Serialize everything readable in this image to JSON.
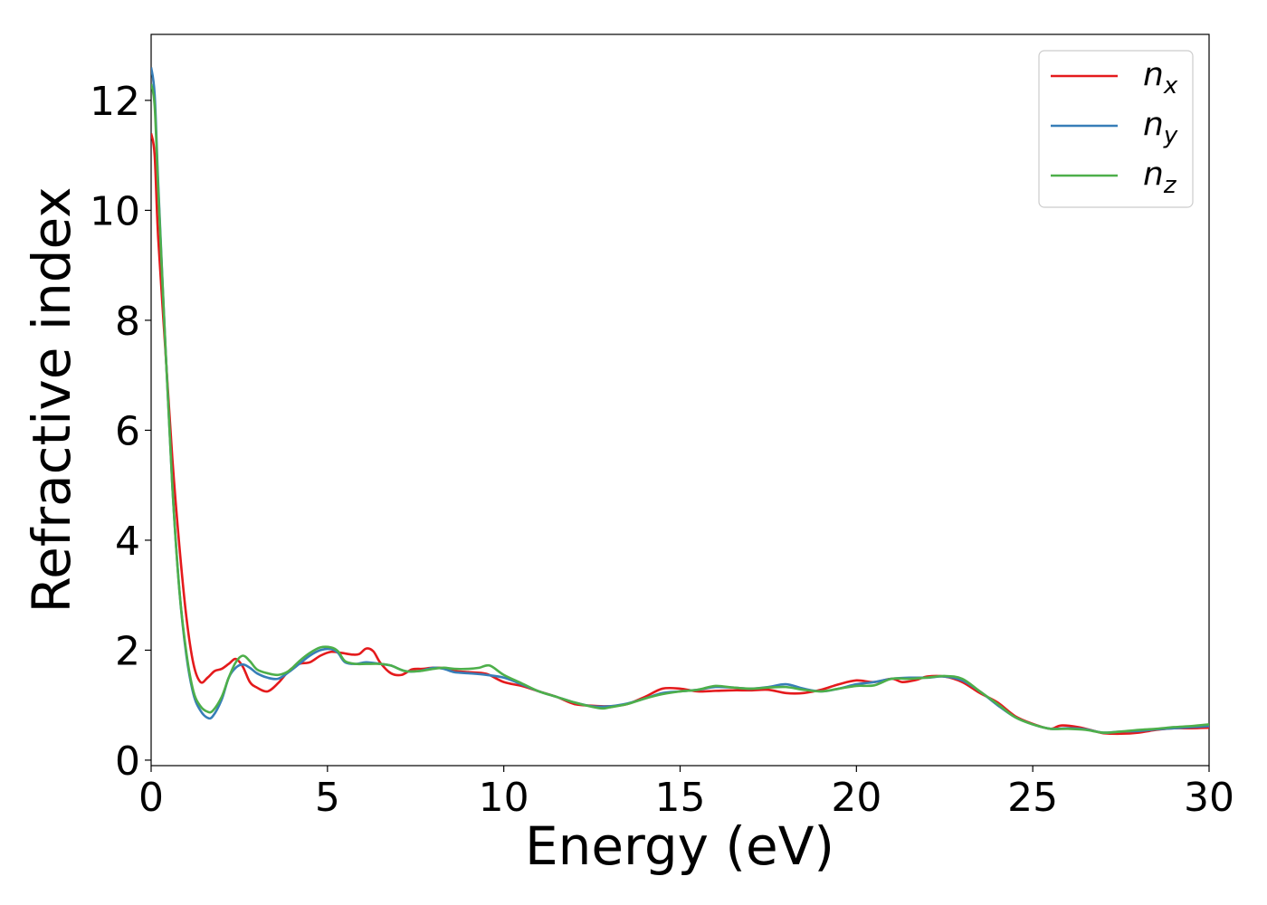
{
  "chart_data": {
    "type": "line",
    "xlabel": "Energy (eV)",
    "ylabel": "Refractive index",
    "xlim": [
      0,
      30
    ],
    "ylim": [
      -0.1,
      13.2
    ],
    "xticks": [
      "0",
      "5",
      "10",
      "15",
      "20",
      "25",
      "30"
    ],
    "yticks": [
      "0",
      "2",
      "4",
      "6",
      "8",
      "10",
      "12"
    ],
    "xtick_values": [
      0,
      5,
      10,
      15,
      20,
      25,
      30
    ],
    "ytick_values": [
      0,
      2,
      4,
      6,
      8,
      10,
      12
    ],
    "grid": false,
    "legend_position": "top-right",
    "series": [
      {
        "name": "n",
        "subscript": "x",
        "color": "#e41a1c",
        "points": [
          [
            0,
            11.4
          ],
          [
            0.1,
            11.0
          ],
          [
            0.2,
            9.5
          ],
          [
            0.4,
            7.5
          ],
          [
            0.6,
            5.5
          ],
          [
            0.8,
            3.9
          ],
          [
            1.0,
            2.6
          ],
          [
            1.2,
            1.75
          ],
          [
            1.4,
            1.42
          ],
          [
            1.6,
            1.5
          ],
          [
            1.8,
            1.62
          ],
          [
            2.0,
            1.66
          ],
          [
            2.2,
            1.75
          ],
          [
            2.4,
            1.84
          ],
          [
            2.6,
            1.7
          ],
          [
            2.8,
            1.42
          ],
          [
            3.0,
            1.32
          ],
          [
            3.3,
            1.25
          ],
          [
            3.6,
            1.4
          ],
          [
            3.9,
            1.62
          ],
          [
            4.2,
            1.75
          ],
          [
            4.5,
            1.78
          ],
          [
            4.8,
            1.9
          ],
          [
            5.1,
            1.97
          ],
          [
            5.4,
            1.95
          ],
          [
            5.7,
            1.92
          ],
          [
            5.9,
            1.93
          ],
          [
            6.1,
            2.03
          ],
          [
            6.3,
            1.98
          ],
          [
            6.5,
            1.77
          ],
          [
            6.8,
            1.58
          ],
          [
            7.1,
            1.55
          ],
          [
            7.4,
            1.65
          ],
          [
            7.7,
            1.66
          ],
          [
            8.0,
            1.68
          ],
          [
            8.3,
            1.67
          ],
          [
            8.6,
            1.62
          ],
          [
            9.0,
            1.6
          ],
          [
            9.5,
            1.57
          ],
          [
            10.0,
            1.42
          ],
          [
            10.5,
            1.35
          ],
          [
            11.0,
            1.25
          ],
          [
            11.5,
            1.15
          ],
          [
            12.0,
            1.02
          ],
          [
            12.5,
            0.99
          ],
          [
            13.0,
            0.98
          ],
          [
            13.5,
            1.02
          ],
          [
            14.0,
            1.15
          ],
          [
            14.5,
            1.3
          ],
          [
            15.0,
            1.3
          ],
          [
            15.5,
            1.25
          ],
          [
            16.0,
            1.26
          ],
          [
            16.5,
            1.27
          ],
          [
            17.0,
            1.27
          ],
          [
            17.5,
            1.28
          ],
          [
            18.0,
            1.22
          ],
          [
            18.5,
            1.22
          ],
          [
            19.0,
            1.28
          ],
          [
            19.5,
            1.38
          ],
          [
            20.0,
            1.45
          ],
          [
            20.5,
            1.42
          ],
          [
            21.0,
            1.48
          ],
          [
            21.3,
            1.42
          ],
          [
            21.7,
            1.46
          ],
          [
            22.0,
            1.52
          ],
          [
            22.5,
            1.52
          ],
          [
            23.0,
            1.42
          ],
          [
            23.5,
            1.22
          ],
          [
            24.0,
            1.05
          ],
          [
            24.5,
            0.8
          ],
          [
            25.0,
            0.66
          ],
          [
            25.5,
            0.57
          ],
          [
            25.8,
            0.63
          ],
          [
            26.3,
            0.6
          ],
          [
            26.8,
            0.52
          ],
          [
            27.0,
            0.49
          ],
          [
            27.5,
            0.48
          ],
          [
            28.0,
            0.5
          ],
          [
            28.5,
            0.55
          ],
          [
            29.0,
            0.58
          ],
          [
            29.5,
            0.58
          ],
          [
            30.0,
            0.59
          ]
        ]
      },
      {
        "name": "n",
        "subscript": "y",
        "color": "#377eb8",
        "points": [
          [
            0,
            12.6
          ],
          [
            0.1,
            12.1
          ],
          [
            0.2,
            10.5
          ],
          [
            0.4,
            7.6
          ],
          [
            0.6,
            5.0
          ],
          [
            0.8,
            3.1
          ],
          [
            1.0,
            1.9
          ],
          [
            1.2,
            1.2
          ],
          [
            1.4,
            0.9
          ],
          [
            1.6,
            0.77
          ],
          [
            1.75,
            0.8
          ],
          [
            2.0,
            1.1
          ],
          [
            2.2,
            1.5
          ],
          [
            2.4,
            1.68
          ],
          [
            2.6,
            1.74
          ],
          [
            2.8,
            1.68
          ],
          [
            3.0,
            1.58
          ],
          [
            3.3,
            1.5
          ],
          [
            3.6,
            1.48
          ],
          [
            3.9,
            1.6
          ],
          [
            4.2,
            1.75
          ],
          [
            4.5,
            1.9
          ],
          [
            4.8,
            2.0
          ],
          [
            5.1,
            2.02
          ],
          [
            5.3,
            1.95
          ],
          [
            5.5,
            1.78
          ],
          [
            5.8,
            1.75
          ],
          [
            6.1,
            1.78
          ],
          [
            6.5,
            1.75
          ],
          [
            6.8,
            1.72
          ],
          [
            7.2,
            1.62
          ],
          [
            7.6,
            1.62
          ],
          [
            8.0,
            1.68
          ],
          [
            8.3,
            1.66
          ],
          [
            8.6,
            1.6
          ],
          [
            9.0,
            1.58
          ],
          [
            9.5,
            1.55
          ],
          [
            10.0,
            1.5
          ],
          [
            10.5,
            1.38
          ],
          [
            11.0,
            1.25
          ],
          [
            11.5,
            1.15
          ],
          [
            12.0,
            1.05
          ],
          [
            12.5,
            0.98
          ],
          [
            13.0,
            0.98
          ],
          [
            13.5,
            1.03
          ],
          [
            14.0,
            1.12
          ],
          [
            14.5,
            1.22
          ],
          [
            15.0,
            1.25
          ],
          [
            15.5,
            1.28
          ],
          [
            16.0,
            1.33
          ],
          [
            16.5,
            1.32
          ],
          [
            17.0,
            1.3
          ],
          [
            17.5,
            1.33
          ],
          [
            18.0,
            1.38
          ],
          [
            18.5,
            1.3
          ],
          [
            19.0,
            1.25
          ],
          [
            19.5,
            1.3
          ],
          [
            20.0,
            1.38
          ],
          [
            20.5,
            1.42
          ],
          [
            21.0,
            1.48
          ],
          [
            21.5,
            1.5
          ],
          [
            22.0,
            1.5
          ],
          [
            22.5,
            1.52
          ],
          [
            23.0,
            1.45
          ],
          [
            23.5,
            1.25
          ],
          [
            24.0,
            1.0
          ],
          [
            24.5,
            0.78
          ],
          [
            25.0,
            0.65
          ],
          [
            25.5,
            0.57
          ],
          [
            26.0,
            0.58
          ],
          [
            26.5,
            0.56
          ],
          [
            27.0,
            0.5
          ],
          [
            27.5,
            0.52
          ],
          [
            28.0,
            0.53
          ],
          [
            28.5,
            0.56
          ],
          [
            29.0,
            0.58
          ],
          [
            29.5,
            0.6
          ],
          [
            30.0,
            0.62
          ]
        ]
      },
      {
        "name": "n",
        "subscript": "z",
        "color": "#4daf4a",
        "points": [
          [
            0,
            12.3
          ],
          [
            0.1,
            11.9
          ],
          [
            0.2,
            10.4
          ],
          [
            0.4,
            7.6
          ],
          [
            0.6,
            5.0
          ],
          [
            0.8,
            3.1
          ],
          [
            1.0,
            1.95
          ],
          [
            1.2,
            1.25
          ],
          [
            1.4,
            0.98
          ],
          [
            1.6,
            0.88
          ],
          [
            1.75,
            0.9
          ],
          [
            2.0,
            1.15
          ],
          [
            2.2,
            1.5
          ],
          [
            2.4,
            1.78
          ],
          [
            2.6,
            1.9
          ],
          [
            2.8,
            1.8
          ],
          [
            3.0,
            1.65
          ],
          [
            3.3,
            1.58
          ],
          [
            3.6,
            1.55
          ],
          [
            3.9,
            1.62
          ],
          [
            4.2,
            1.8
          ],
          [
            4.5,
            1.95
          ],
          [
            4.8,
            2.05
          ],
          [
            5.1,
            2.05
          ],
          [
            5.3,
            1.98
          ],
          [
            5.5,
            1.8
          ],
          [
            5.8,
            1.75
          ],
          [
            6.1,
            1.75
          ],
          [
            6.5,
            1.75
          ],
          [
            6.8,
            1.72
          ],
          [
            7.2,
            1.62
          ],
          [
            7.6,
            1.62
          ],
          [
            8.0,
            1.66
          ],
          [
            8.3,
            1.68
          ],
          [
            8.6,
            1.66
          ],
          [
            9.0,
            1.66
          ],
          [
            9.3,
            1.68
          ],
          [
            9.6,
            1.72
          ],
          [
            10.0,
            1.55
          ],
          [
            10.5,
            1.4
          ],
          [
            11.0,
            1.25
          ],
          [
            11.5,
            1.15
          ],
          [
            12.0,
            1.05
          ],
          [
            12.5,
            0.97
          ],
          [
            12.8,
            0.94
          ],
          [
            13.0,
            0.96
          ],
          [
            13.5,
            1.02
          ],
          [
            14.0,
            1.12
          ],
          [
            14.5,
            1.2
          ],
          [
            15.0,
            1.25
          ],
          [
            15.5,
            1.28
          ],
          [
            16.0,
            1.35
          ],
          [
            16.5,
            1.32
          ],
          [
            17.0,
            1.3
          ],
          [
            17.5,
            1.32
          ],
          [
            18.0,
            1.33
          ],
          [
            18.5,
            1.28
          ],
          [
            19.0,
            1.25
          ],
          [
            19.5,
            1.3
          ],
          [
            20.0,
            1.35
          ],
          [
            20.5,
            1.36
          ],
          [
            21.0,
            1.48
          ],
          [
            21.5,
            1.48
          ],
          [
            22.0,
            1.5
          ],
          [
            22.5,
            1.53
          ],
          [
            23.0,
            1.48
          ],
          [
            23.5,
            1.25
          ],
          [
            24.0,
            1.02
          ],
          [
            24.5,
            0.78
          ],
          [
            25.0,
            0.65
          ],
          [
            25.5,
            0.57
          ],
          [
            26.0,
            0.57
          ],
          [
            26.5,
            0.55
          ],
          [
            27.0,
            0.5
          ],
          [
            27.5,
            0.52
          ],
          [
            28.0,
            0.55
          ],
          [
            28.5,
            0.57
          ],
          [
            29.0,
            0.6
          ],
          [
            29.5,
            0.62
          ],
          [
            30.0,
            0.65
          ]
        ]
      }
    ]
  }
}
